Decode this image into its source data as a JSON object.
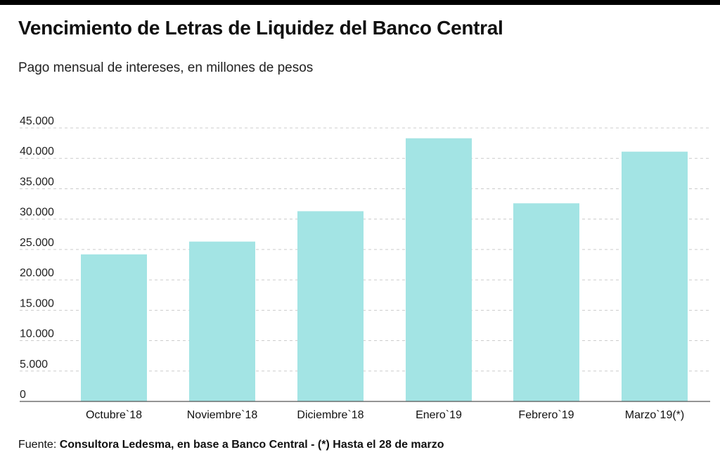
{
  "header": {
    "title": "Vencimiento de Letras de Liquidez del Banco Central",
    "subtitle": "Pago mensual de intereses, en millones de pesos"
  },
  "footer": {
    "source_label": "Fuente:",
    "source_text": "Consultora Ledesma, en base a Banco Central - (*) Hasta el 28 de marzo"
  },
  "colors": {
    "bar": "#a3e4e4",
    "grid": "#cccccc",
    "axis": "#555555"
  },
  "chart_data": {
    "type": "bar",
    "title": "Vencimiento de Letras de Liquidez del Banco Central",
    "subtitle": "Pago mensual de intereses, en millones de pesos",
    "xlabel": "",
    "ylabel": "",
    "categories": [
      "Octubre`18",
      "Noviembre`18",
      "Diciembre`18",
      "Enero`19",
      "Febrero`19",
      "Marzo`19(*)"
    ],
    "values": [
      24200,
      26300,
      31300,
      43300,
      32600,
      41100
    ],
    "ylim": [
      0,
      45000
    ],
    "yticks": [
      0,
      5000,
      10000,
      15000,
      20000,
      25000,
      30000,
      35000,
      40000,
      45000
    ],
    "ytick_labels": [
      "0",
      "5.000",
      "10.000",
      "15.000",
      "20.000",
      "25.000",
      "30.000",
      "35.000",
      "40.000",
      "45.000"
    ],
    "grid": true,
    "legend": "none"
  }
}
